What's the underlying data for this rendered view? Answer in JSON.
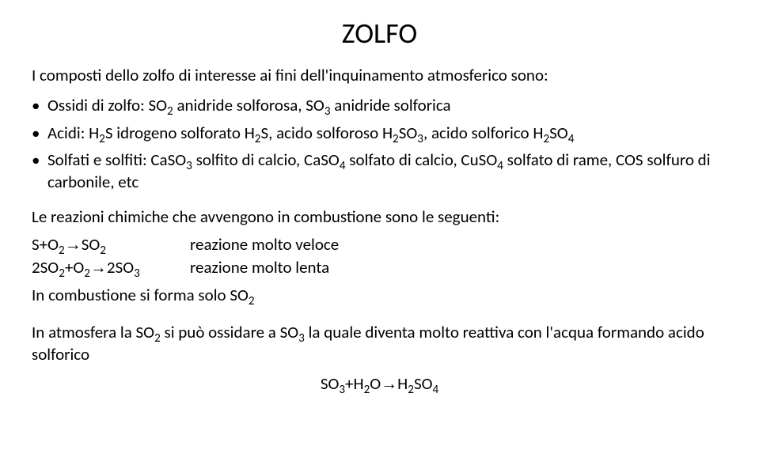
{
  "title_fontsize": 36,
  "body_fontsize": 21,
  "text_color": "#000000",
  "background_color": "#ffffff",
  "slide_width": 959,
  "slide_height": 588,
  "font_family": "Calibri, Arial, sans-serif",
  "title": "ZOLFO",
  "lead": "I composti dello zolfo di interesse ai fini dell'inquinamento atmosferico sono:",
  "bullets": [
    {
      "html": "Ossidi di zolfo: SO<sub>2</sub> anidride solforosa, SO<sub>3</sub> anidride solforica"
    },
    {
      "html": "Acidi: H<sub>2</sub>S idrogeno solforato H<sub>2</sub>S, acido solforoso H<sub>2</sub>SO<sub>3</sub>, acido solforico H<sub>2</sub>SO<sub>4</sub>"
    },
    {
      "html": "Solfati e solfiti: CaSO<sub>3</sub> solfito di calcio, CaSO<sub>4</sub> solfato di calcio, CuSO<sub>4</sub> solfato di rame, COS solfuro di carbonile, etc"
    }
  ],
  "subsection_intro": "Le reazioni chimiche che avvengono in combustione sono le seguenti:",
  "reactions": [
    {
      "eq_html": "S+O<sub>2</sub><span class=\"arrow\">&rarr;</span>SO<sub>2</sub>",
      "desc": "reazione molto veloce"
    },
    {
      "eq_html": "2SO<sub>2</sub>+O<sub>2</sub><span class=\"arrow\">&rarr;</span>2SO<sub>3</sub>",
      "desc": "reazione molto lenta"
    }
  ],
  "combustion_note_html": "In combustione si forma solo SO<sub>2</sub>",
  "atmosphere_note_html": "In atmosfera la SO<sub>2</sub> si può ossidare a SO<sub>3</sub> la quale diventa molto reattiva con l'acqua formando acido solforico",
  "final_equation_html": "SO<sub>3</sub>+H<sub>2</sub>O<span class=\"arrow\">&rarr;</span>H<sub>2</sub>SO<sub>4</sub>"
}
